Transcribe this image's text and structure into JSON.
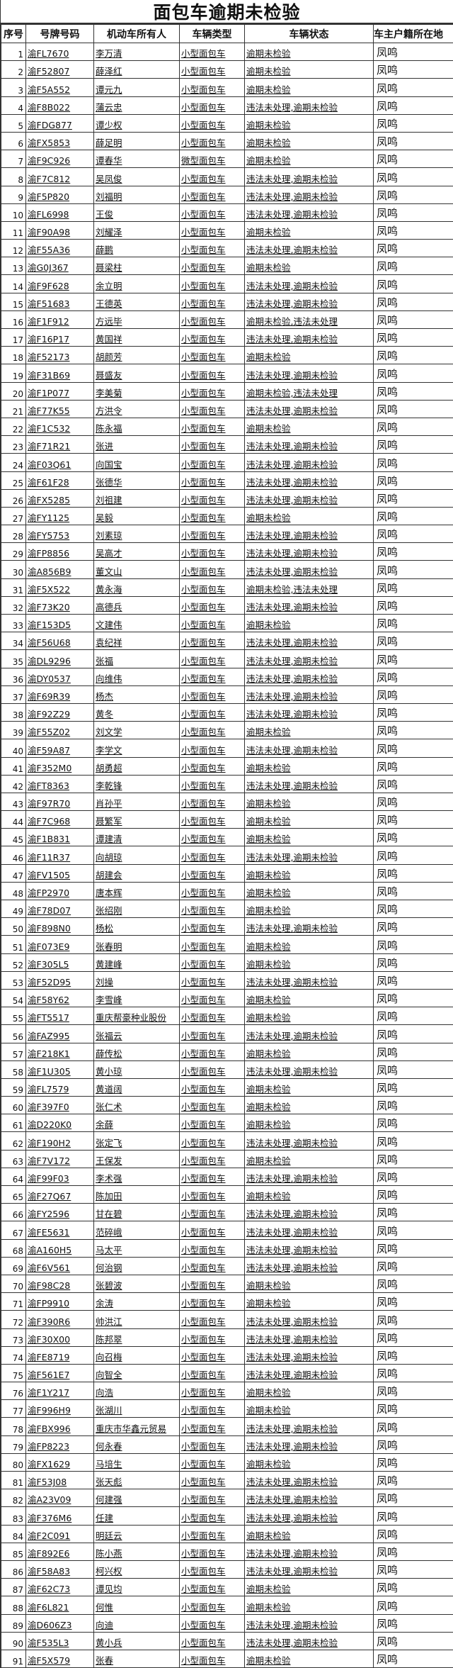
{
  "title": "面包车逾期未检验",
  "headers": [
    "序号",
    "号牌号码",
    "机动车所有人",
    "车辆类型",
    "车辆状态",
    "车主户籍所在地"
  ],
  "rows": [
    [
      "1",
      "渝FL7670",
      "李万清",
      "小型面包车",
      "逾期未检验",
      "凤鸣"
    ],
    [
      "2",
      "渝F52807",
      "薛泽红",
      "小型面包车",
      "逾期未检验",
      "凤鸣"
    ],
    [
      "3",
      "渝F5A552",
      "谭元九",
      "小型面包车",
      "逾期未检验",
      "凤鸣"
    ],
    [
      "4",
      "渝F8B022",
      "蒲云忠",
      "小型面包车",
      "违法未处理,逾期未检验",
      "凤鸣"
    ],
    [
      "5",
      "渝FDG877",
      "谭少权",
      "小型面包车",
      "逾期未检验",
      "凤鸣"
    ],
    [
      "6",
      "渝FX5853",
      "薛足明",
      "小型面包车",
      "逾期未检验",
      "凤鸣"
    ],
    [
      "7",
      "渝F9C926",
      "谭春华",
      "微型面包车",
      "逾期未检验",
      "凤鸣"
    ],
    [
      "8",
      "渝F7C812",
      "吴凤俊",
      "小型面包车",
      "违法未处理,逾期未检验",
      "凤鸣"
    ],
    [
      "9",
      "渝F5P820",
      "刘福明",
      "小型面包车",
      "违法未处理,逾期未检验",
      "凤鸣"
    ],
    [
      "10",
      "渝FL6998",
      "王俊",
      "小型面包车",
      "违法未处理,逾期未检验",
      "凤鸣"
    ],
    [
      "11",
      "渝F90A98",
      "刘耀泽",
      "小型面包车",
      "逾期未检验",
      "凤鸣"
    ],
    [
      "12",
      "渝F55A36",
      "薛鹏",
      "小型面包车",
      "违法未处理,逾期未检验",
      "凤鸣"
    ],
    [
      "13",
      "渝G0J367",
      "聂梁柱",
      "小型面包车",
      "逾期未检验",
      "凤鸣"
    ],
    [
      "14",
      "渝F9F628",
      "余立明",
      "小型面包车",
      "违法未处理,逾期未检验",
      "凤鸣"
    ],
    [
      "15",
      "渝F51683",
      "王德英",
      "小型面包车",
      "违法未处理,逾期未检验",
      "凤鸣"
    ],
    [
      "16",
      "渝F1F912",
      "方远毕",
      "小型面包车",
      "逾期未检验,违法未处理",
      "凤鸣"
    ],
    [
      "17",
      "渝F16P17",
      "黄国祥",
      "小型面包车",
      "违法未处理,逾期未检验",
      "凤鸣"
    ],
    [
      "18",
      "渝F52173",
      "胡颜芳",
      "小型面包车",
      "逾期未检验",
      "凤鸣"
    ],
    [
      "19",
      "渝F31B69",
      "聂盛友",
      "小型面包车",
      "违法未处理,逾期未检验",
      "凤鸣"
    ],
    [
      "20",
      "渝F1P077",
      "李美菊",
      "小型面包车",
      "逾期未检验,违法未处理",
      "凤鸣"
    ],
    [
      "21",
      "渝F77K55",
      "方洪令",
      "小型面包车",
      "违法未处理,逾期未检验",
      "凤鸣"
    ],
    [
      "22",
      "渝F1C532",
      "陈永福",
      "小型面包车",
      "逾期未检验",
      "凤鸣"
    ],
    [
      "23",
      "渝F71R21",
      "张进",
      "小型面包车",
      "违法未处理,逾期未检验",
      "凤鸣"
    ],
    [
      "24",
      "渝F03Q61",
      "向国宝",
      "小型面包车",
      "违法未处理,逾期未检验",
      "凤鸣"
    ],
    [
      "25",
      "渝F61F28",
      "张德华",
      "小型面包车",
      "违法未处理,逾期未检验",
      "凤鸣"
    ],
    [
      "26",
      "渝FX5285",
      "刘祖建",
      "小型面包车",
      "违法未处理,逾期未检验",
      "凤鸣"
    ],
    [
      "27",
      "渝FY1125",
      "吴毅",
      "小型面包车",
      "逾期未检验",
      "凤鸣"
    ],
    [
      "28",
      "渝FY5753",
      "刘素琼",
      "小型面包车",
      "违法未处理,逾期未检验",
      "凤鸣"
    ],
    [
      "29",
      "渝FP8856",
      "吴高才",
      "小型面包车",
      "违法未处理,逾期未检验",
      "凤鸣"
    ],
    [
      "30",
      "渝A856B9",
      "董文山",
      "小型面包车",
      "违法未处理,逾期未检验",
      "凤鸣"
    ],
    [
      "31",
      "渝F5X522",
      "黄永海",
      "小型面包车",
      "逾期未检验,违法未处理",
      "凤鸣"
    ],
    [
      "32",
      "渝F73K20",
      "高德兵",
      "小型面包车",
      "违法未处理,逾期未检验",
      "凤鸣"
    ],
    [
      "33",
      "渝F153D5",
      "文建伟",
      "小型面包车",
      "逾期未检验",
      "凤鸣"
    ],
    [
      "34",
      "渝F56U68",
      "袁纪祥",
      "小型面包车",
      "违法未处理,逾期未检验",
      "凤鸣"
    ],
    [
      "35",
      "渝DL9296",
      "张福",
      "小型面包车",
      "违法未处理,逾期未检验",
      "凤鸣"
    ],
    [
      "36",
      "渝DY0537",
      "向维伟",
      "小型面包车",
      "违法未处理,逾期未检验",
      "凤鸣"
    ],
    [
      "37",
      "渝F69R39",
      "杨杰",
      "小型面包车",
      "违法未处理,逾期未检验",
      "凤鸣"
    ],
    [
      "38",
      "渝F92Z29",
      "黄冬",
      "小型面包车",
      "违法未处理,逾期未检验",
      "凤鸣"
    ],
    [
      "39",
      "渝F55Z02",
      "刘文学",
      "小型面包车",
      "逾期未检验",
      "凤鸣"
    ],
    [
      "40",
      "渝F59A87",
      "李学文",
      "小型面包车",
      "违法未处理,逾期未检验",
      "凤鸣"
    ],
    [
      "41",
      "渝F352M0",
      "胡勇超",
      "小型面包车",
      "逾期未检验",
      "凤鸣"
    ],
    [
      "42",
      "渝FT8363",
      "李乾锋",
      "小型面包车",
      "违法未处理,逾期未检验",
      "凤鸣"
    ],
    [
      "43",
      "渝F97R70",
      "肖孙平",
      "小型面包车",
      "逾期未检验",
      "凤鸣"
    ],
    [
      "44",
      "渝F7C968",
      "聂繁军",
      "小型面包车",
      "逾期未检验",
      "凤鸣"
    ],
    [
      "45",
      "渝F1B831",
      "谭建清",
      "小型面包车",
      "逾期未检验",
      "凤鸣"
    ],
    [
      "46",
      "渝F11R37",
      "向胡琼",
      "小型面包车",
      "违法未处理,逾期未检验",
      "凤鸣"
    ],
    [
      "47",
      "渝FV1505",
      "胡建会",
      "小型面包车",
      "逾期未检验",
      "凤鸣"
    ],
    [
      "48",
      "渝FP2970",
      "唐本辉",
      "小型面包车",
      "逾期未检验",
      "凤鸣"
    ],
    [
      "49",
      "渝F78D07",
      "张绍刚",
      "小型面包车",
      "逾期未检验",
      "凤鸣"
    ],
    [
      "50",
      "渝F898N0",
      "杨松",
      "小型面包车",
      "违法未处理,逾期未检验",
      "凤鸣"
    ],
    [
      "51",
      "渝F073E9",
      "张春明",
      "小型面包车",
      "逾期未检验",
      "凤鸣"
    ],
    [
      "52",
      "渝F305L5",
      "黄建峰",
      "小型面包车",
      "逾期未检验",
      "凤鸣"
    ],
    [
      "53",
      "渝F52D95",
      "刘操",
      "小型面包车",
      "违法未处理,逾期未检验",
      "凤鸣"
    ],
    [
      "54",
      "渝F58Y62",
      "李雪峰",
      "小型面包车",
      "逾期未检验",
      "凤鸣"
    ],
    [
      "55",
      "渝FT5517",
      "重庆帮豪种业股份",
      "小型面包车",
      "逾期未检验",
      "凤鸣"
    ],
    [
      "56",
      "渝FAZ995",
      "张福云",
      "小型面包车",
      "违法未处理,逾期未检验",
      "凤鸣"
    ],
    [
      "57",
      "渝F218K1",
      "薛传松",
      "小型面包车",
      "逾期未检验",
      "凤鸣"
    ],
    [
      "58",
      "渝F1U305",
      "黄小琼",
      "小型面包车",
      "违法未处理,逾期未检验",
      "凤鸣"
    ],
    [
      "59",
      "渝FL7579",
      "黄道阔",
      "小型面包车",
      "逾期未检验",
      "凤鸣"
    ],
    [
      "60",
      "渝F397F0",
      "张仁术",
      "小型面包车",
      "逾期未检验",
      "凤鸣"
    ],
    [
      "61",
      "渝D220K0",
      "余薛",
      "小型面包车",
      "逾期未检验",
      "凤鸣"
    ],
    [
      "62",
      "渝F190H2",
      "张定飞",
      "小型面包车",
      "违法未处理,逾期未检验",
      "凤鸣"
    ],
    [
      "63",
      "渝F7V172",
      "王保发",
      "小型面包车",
      "逾期未检验",
      "凤鸣"
    ],
    [
      "64",
      "渝F99F03",
      "李术强",
      "小型面包车",
      "违法未处理,逾期未检验",
      "凤鸣"
    ],
    [
      "65",
      "渝F27Q67",
      "陈加田",
      "小型面包车",
      "逾期未检验",
      "凤鸣"
    ],
    [
      "66",
      "渝FY2596",
      "甘在碧",
      "小型面包车",
      "违法未处理,逾期未检验",
      "凤鸣"
    ],
    [
      "67",
      "渝FE5631",
      "范碎峨",
      "小型面包车",
      "违法未处理,逾期未检验",
      "凤鸣"
    ],
    [
      "68",
      "渝A160H5",
      "马太平",
      "小型面包车",
      "违法未处理,逾期未检验",
      "凤鸣"
    ],
    [
      "69",
      "渝F6V561",
      "何治钢",
      "小型面包车",
      "违法未处理,逾期未检验",
      "凤鸣"
    ],
    [
      "70",
      "渝F98C28",
      "张碧波",
      "小型面包车",
      "逾期未检验",
      "凤鸣"
    ],
    [
      "71",
      "渝FP9910",
      "余涛",
      "小型面包车",
      "逾期未检验",
      "凤鸣"
    ],
    [
      "72",
      "渝F390R6",
      "帅洪江",
      "小型面包车",
      "违法未处理,逾期未检验",
      "凤鸣"
    ],
    [
      "73",
      "渝F30X00",
      "陈邦翠",
      "小型面包车",
      "违法未处理,逾期未检验",
      "凤鸣"
    ],
    [
      "74",
      "渝FE8719",
      "向召梅",
      "小型面包车",
      "违法未处理,逾期未检验",
      "凤鸣"
    ],
    [
      "75",
      "渝F561E7",
      "向智全",
      "小型面包车",
      "违法未处理,逾期未检验",
      "凤鸣"
    ],
    [
      "76",
      "渝F1Y217",
      "向浩",
      "小型面包车",
      "逾期未检验",
      "凤鸣"
    ],
    [
      "77",
      "渝F996H9",
      "张湖川",
      "小型面包车",
      "逾期未检验",
      "凤鸣"
    ],
    [
      "78",
      "渝FBX996",
      "重庆市华鑫元贸易",
      "小型面包车",
      "违法未处理,逾期未检验",
      "凤鸣"
    ],
    [
      "79",
      "渝FP8223",
      "何永春",
      "小型面包车",
      "违法未处理,逾期未检验",
      "凤鸣"
    ],
    [
      "80",
      "渝FX1629",
      "马培生",
      "小型面包车",
      "逾期未检验",
      "凤鸣"
    ],
    [
      "81",
      "渝F53J08",
      "张天彪",
      "小型面包车",
      "违法未处理,逾期未检验",
      "凤鸣"
    ],
    [
      "82",
      "渝A23V09",
      "何建强",
      "小型面包车",
      "违法未处理,逾期未检验",
      "凤鸣"
    ],
    [
      "83",
      "渝F376M6",
      "任建",
      "小型面包车",
      "违法未处理,逾期未检验",
      "凤鸣"
    ],
    [
      "84",
      "渝F2C091",
      "明廷云",
      "小型面包车",
      "逾期未检验",
      "凤鸣"
    ],
    [
      "85",
      "渝F892E6",
      "陈小燕",
      "小型面包车",
      "违法未处理,逾期未检验",
      "凤鸣"
    ],
    [
      "86",
      "渝F58A83",
      "柯兴权",
      "小型面包车",
      "违法未处理,逾期未检验",
      "凤鸣"
    ],
    [
      "87",
      "渝F62C73",
      "谭见均",
      "小型面包车",
      "逾期未检验",
      "凤鸣"
    ],
    [
      "88",
      "渝F6L821",
      "何惟",
      "小型面包车",
      "逾期未检验",
      "凤鸣"
    ],
    [
      "89",
      "渝D606Z3",
      "向迪",
      "小型面包车",
      "违法未处理,逾期未检验",
      "凤鸣"
    ],
    [
      "90",
      "渝F535L3",
      "黄小兵",
      "小型面包车",
      "违法未处理,逾期未检验",
      "凤鸣"
    ],
    [
      "91",
      "渝F5X579",
      "张春",
      "小型面包车",
      "逾期未检验",
      "凤鸣"
    ]
  ]
}
